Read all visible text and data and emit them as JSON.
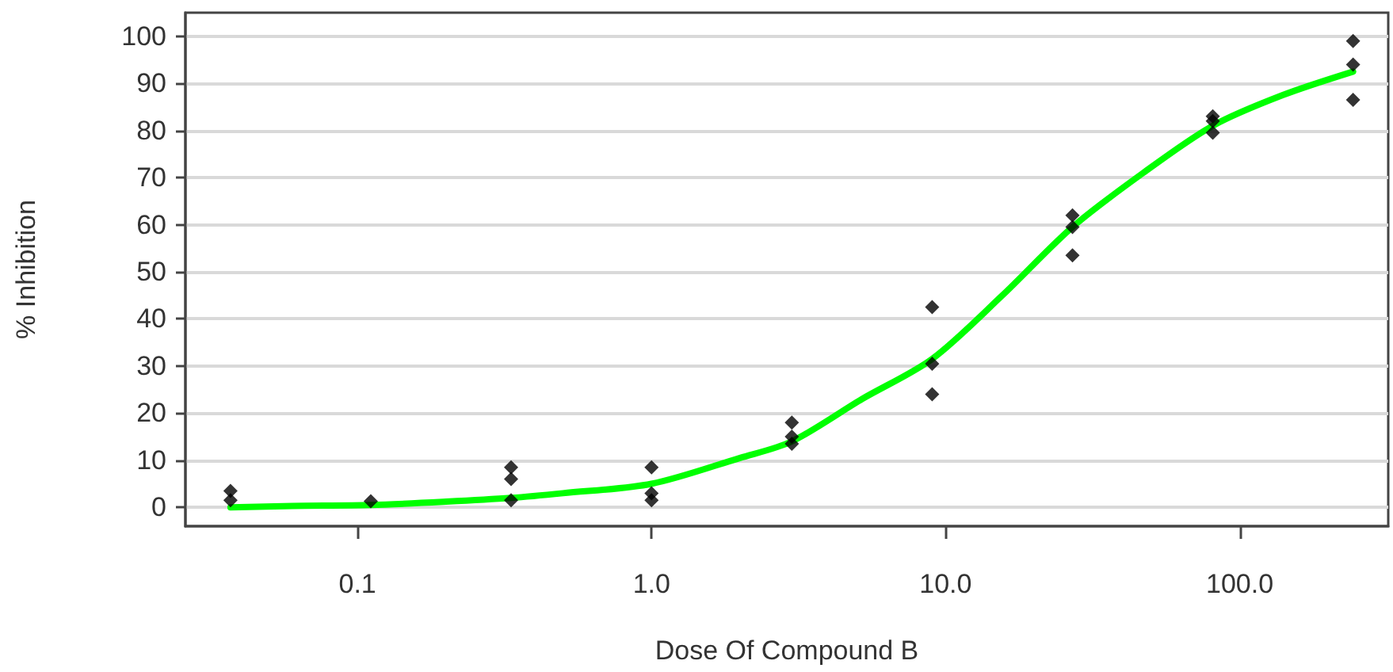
{
  "chart_data": {
    "type": "scatter",
    "xlabel": "Dose Of Compound B",
    "ylabel": "% Inhibition",
    "log": "x",
    "xlim": [
      0.026,
      320
    ],
    "xticks": [
      {
        "value": 0.1,
        "label": "0.1"
      },
      {
        "value": 1,
        "label": "1.0"
      },
      {
        "value": 10,
        "label": "10.0"
      },
      {
        "value": 100,
        "label": "100.0"
      }
    ],
    "ylim": [
      -4,
      105
    ],
    "yticks": [
      0,
      10,
      20,
      30,
      40,
      50,
      60,
      70,
      80,
      90,
      100
    ],
    "grid": "y",
    "series": [
      {
        "color": "#000000",
        "marker": "diamond",
        "x": [
          0.037,
          0.037,
          0.111,
          0.333,
          0.333,
          0.333,
          1,
          1,
          1,
          3,
          3,
          3,
          9,
          9,
          9,
          27,
          27,
          27,
          81,
          81,
          81,
          243,
          243,
          243
        ],
        "values": [
          3.5,
          1.5,
          1.3,
          8.5,
          6,
          1.5,
          8.5,
          3,
          1.5,
          18,
          15,
          13.5,
          42.5,
          30.5,
          24,
          62,
          59.5,
          53.5,
          83,
          82,
          79.5,
          99,
          94,
          86.5
        ]
      },
      {
        "type": "line",
        "color": "#00ff00",
        "marker": "none",
        "line_style": "solid",
        "x": [
          0.037,
          0.06,
          0.111,
          0.2,
          0.333,
          0.5,
          1,
          2,
          3,
          5.2,
          9,
          15.6,
          27,
          47,
          81,
          140,
          243
        ],
        "values": [
          0,
          0.3,
          0.5,
          1.2,
          2,
          3,
          5,
          10.5,
          14,
          23,
          31.5,
          45,
          59.5,
          71,
          81,
          87.5,
          92.5
        ]
      }
    ]
  }
}
